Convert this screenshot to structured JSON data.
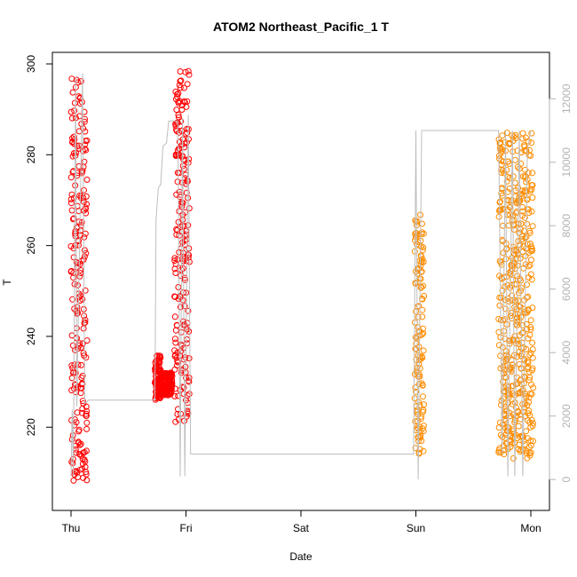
{
  "chart_data": {
    "type": "scatter",
    "title": "ATOM2 Northeast_Pacific_1 T",
    "xlabel": "Date",
    "ylabel": "T",
    "x_tick_labels": [
      "Thu",
      "Fri",
      "Sat",
      "Sun",
      "Mon"
    ],
    "x_range_days": [
      0,
      4
    ],
    "ylim": [
      205,
      300
    ],
    "y_ticks": [
      220,
      240,
      260,
      280,
      300
    ],
    "ylim_right": [
      -500,
      13100
    ],
    "y_ticks_right": [
      0,
      2000,
      4000,
      6000,
      8000,
      10000,
      12000
    ],
    "grid": false,
    "series": [
      {
        "color": "#ff0000",
        "marker": "open-circle",
        "segments": [
          {
            "x_start": 0.0,
            "x_end": 0.14,
            "y_min": 208,
            "y_max": 297
          },
          {
            "x_start": 0.73,
            "x_end": 0.78,
            "y_min": 226,
            "y_max": 236
          },
          {
            "x_start": 0.78,
            "x_end": 0.88,
            "y_min": 227,
            "y_max": 232
          },
          {
            "x_start": 0.9,
            "x_end": 1.03,
            "y_min": 221,
            "y_max": 299
          }
        ]
      },
      {
        "color": "#ff8c00",
        "marker": "open-circle",
        "segments": [
          {
            "x_start": 2.99,
            "x_end": 3.07,
            "y_min": 214,
            "y_max": 267
          },
          {
            "x_start": 3.72,
            "x_end": 4.02,
            "y_min": 213,
            "y_max": 285
          }
        ]
      },
      {
        "color": "#bebebe",
        "marker": "line",
        "axis": "right",
        "points": [
          [
            0.0,
            100
          ],
          [
            0.01,
            2200
          ],
          [
            0.02,
            100
          ],
          [
            0.04,
            12700
          ],
          [
            0.05,
            2300
          ],
          [
            0.1,
            12800
          ],
          [
            0.12,
            2400
          ],
          [
            0.14,
            2450
          ],
          [
            0.15,
            2500
          ],
          [
            0.73,
            2500
          ],
          [
            0.74,
            8200
          ],
          [
            0.76,
            9200
          ],
          [
            0.78,
            9300
          ],
          [
            0.8,
            10500
          ],
          [
            0.83,
            10600
          ],
          [
            0.85,
            11300
          ],
          [
            0.93,
            11300
          ],
          [
            0.95,
            100
          ],
          [
            0.97,
            11400
          ],
          [
            0.99,
            100
          ],
          [
            1.02,
            11500
          ],
          [
            1.04,
            800
          ],
          [
            2.98,
            800
          ],
          [
            3.0,
            11000
          ],
          [
            3.02,
            0
          ],
          [
            3.05,
            11000
          ],
          [
            3.72,
            11000
          ],
          [
            3.75,
            800
          ],
          [
            3.78,
            11000
          ],
          [
            3.8,
            100
          ],
          [
            3.84,
            11000
          ],
          [
            3.86,
            100
          ],
          [
            3.9,
            11000
          ],
          [
            3.93,
            100
          ],
          [
            3.97,
            10400
          ],
          [
            4.0,
            11000
          ]
        ]
      }
    ]
  }
}
